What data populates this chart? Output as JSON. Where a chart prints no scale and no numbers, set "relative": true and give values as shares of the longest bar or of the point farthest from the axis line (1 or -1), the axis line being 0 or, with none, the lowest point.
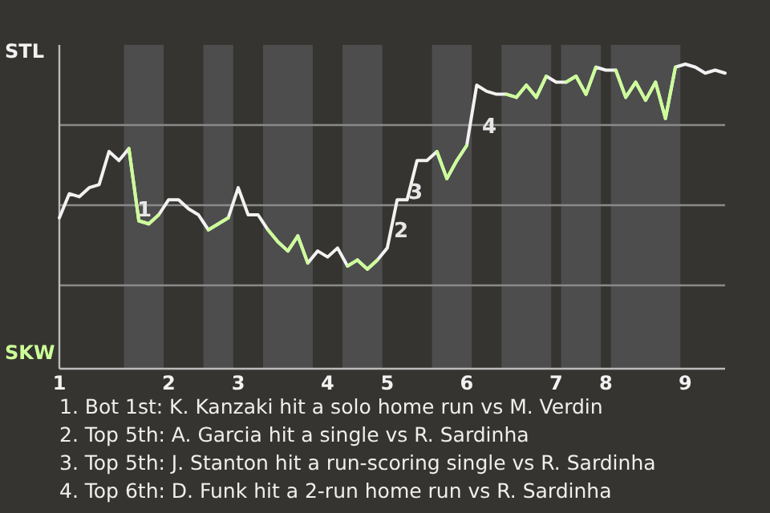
{
  "chart_data": {
    "type": "line",
    "relative": true,
    "categories": [
      "1",
      null,
      null,
      null,
      null,
      null,
      null,
      null,
      null,
      null,
      null,
      "2",
      null,
      null,
      null,
      null,
      null,
      null,
      "3",
      null,
      null,
      null,
      null,
      null,
      null,
      null,
      null,
      "4",
      null,
      null,
      null,
      null,
      null,
      "5",
      null,
      null,
      null,
      null,
      null,
      null,
      null,
      "6",
      null,
      null,
      null,
      null,
      null,
      null,
      null,
      null,
      "7",
      null,
      null,
      null,
      null,
      "8",
      null,
      null,
      null,
      null,
      null,
      null,
      null,
      "9",
      null,
      null,
      null,
      null
    ],
    "series": [
      {
        "color": "#f2f2f2",
        "values": [
          0.49,
          0.57,
          0.56,
          0.59,
          0.6,
          0.71,
          0.68,
          0.72,
          0.48,
          0.47,
          0.5,
          0.55,
          0.55,
          0.52,
          0.5,
          0.45,
          0.47,
          0.49,
          0.59,
          0.5,
          0.5,
          0.45,
          0.41,
          0.38,
          0.43,
          0.34,
          0.38,
          0.36,
          0.39,
          0.33,
          0.35,
          0.32,
          0.35,
          0.39,
          0.55,
          0.55,
          0.68,
          0.68,
          0.71,
          0.62,
          0.68,
          0.73,
          0.93,
          0.91,
          0.9,
          0.9,
          0.89,
          0.93,
          0.89,
          0.96,
          0.94,
          0.94,
          0.96,
          0.9,
          0.99,
          0.98,
          0.98,
          0.89,
          0.94,
          0.88,
          0.94,
          0.82,
          0.99,
          1,
          0.99,
          0.97,
          0.98,
          0.97
        ],
        "colors": [
          "#f2f2f2",
          "#f2f2f2",
          "#f2f2f2",
          "#f2f2f2",
          "#f2f2f2",
          "#f2f2f2",
          "#f2f2f2",
          "#ccff99",
          "#ccff99",
          "#ccff99",
          "#ccff99",
          "#f2f2f2",
          "#f2f2f2",
          "#f2f2f2",
          "#f2f2f2",
          "#ccff99",
          "#ccff99",
          "#ccff99",
          "#f2f2f2",
          "#f2f2f2",
          "#f2f2f2",
          "#ccff99",
          "#ccff99",
          "#ccff99",
          "#ccff99",
          "#ccff99",
          "#f2f2f2",
          "#f2f2f2",
          "#f2f2f2",
          "#ccff99",
          "#ccff99",
          "#ccff99",
          "#ccff99",
          "#f2f2f2",
          "#f2f2f2",
          "#f2f2f2",
          "#f2f2f2",
          "#f2f2f2",
          "#ccff99",
          "#ccff99",
          "#ccff99",
          "#ccff99",
          "#f2f2f2",
          "#f2f2f2",
          "#f2f2f2",
          "#ccff99",
          "#ccff99",
          "#ccff99",
          "#ccff99",
          "#ccff99",
          "#f2f2f2",
          "#ccff99",
          "#ccff99",
          "#ccff99",
          "#ccff99",
          "#f2f2f2",
          "#ccff99",
          "#ccff99",
          "#ccff99",
          "#ccff99",
          "#ccff99",
          "#ccff99",
          "#ccff99",
          "#f2f2f2",
          "#f2f2f2",
          "#f2f2f2",
          "#f2f2f2",
          "#f2f2f2"
        ]
      }
    ],
    "annotations": [
      "STL",
      "SKW",
      "1",
      "2",
      "3",
      "4",
      "1. Bot 1st: K. Kanzaki hit a solo home run vs M. Verdin",
      "2. Top 5th: A. Garcia hit a single vs R. Sardinha",
      "3. Top 5th: J. Stanton hit a run-scoring single vs R. Sardinha",
      "4. Top 6th: D. Funk hit a 2-run home run vs R. Sardinha"
    ],
    "grid": true,
    "line_style": "solid",
    "marker": "none"
  }
}
